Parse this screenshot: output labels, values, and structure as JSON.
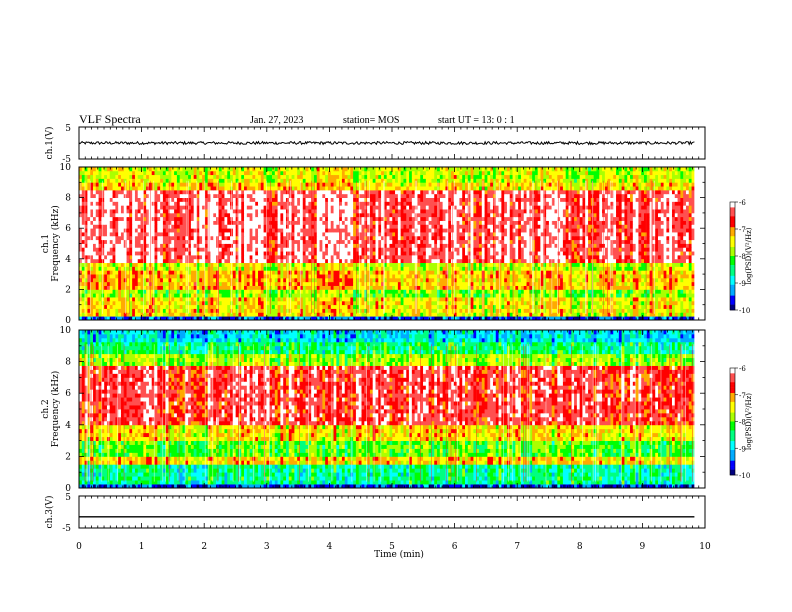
{
  "header": {
    "title": "VLF Spectra",
    "date": "Jan. 27, 2023",
    "station": "station= MOS",
    "start_ut": "start  UT =   13: 0   : 1"
  },
  "chart_data": [
    {
      "type": "line",
      "panel": "ch1-waveform",
      "ylabel": "ch.1(V)",
      "ylim": [
        -5,
        5
      ],
      "yticks": [
        "5",
        "-5"
      ],
      "x_range": [
        0,
        9.83
      ],
      "series": [
        {
          "values": [
            0.0,
            0.0
          ]
        }
      ]
    },
    {
      "type": "heatmap",
      "panel": "ch1-spectrogram",
      "ylabel": "ch.1\nFrequency (kHz)",
      "ylim": [
        0,
        10
      ],
      "yticks": [
        "0",
        "2",
        "4",
        "6",
        "8",
        "10"
      ],
      "x_range": [
        0,
        9.83
      ],
      "colorbar": {
        "label": "log(PSD)(V²/Hz)",
        "range": [
          -10,
          -6
        ],
        "ticks": [
          "-6",
          "-7",
          "-8",
          "-9",
          "-10"
        ]
      },
      "bands": [
        {
          "f": [
            0.0,
            0.3
          ],
          "level": -9.5
        },
        {
          "f": [
            0.3,
            1.5
          ],
          "level": -7.4
        },
        {
          "f": [
            1.5,
            2.0
          ],
          "level": -7.9
        },
        {
          "f": [
            2.0,
            3.2
          ],
          "level": -7.2
        },
        {
          "f": [
            3.2,
            3.7
          ],
          "level": -7.6
        },
        {
          "f": [
            3.7,
            8.6
          ],
          "level": -6.3
        },
        {
          "f": [
            8.6,
            9.1
          ],
          "level": -7.3
        },
        {
          "f": [
            9.1,
            10.0
          ],
          "level": -7.6
        }
      ]
    },
    {
      "type": "heatmap",
      "panel": "ch2-spectrogram",
      "ylabel": "ch.2\nFrequency (kHz)",
      "ylim": [
        0,
        10
      ],
      "yticks": [
        "0",
        "2",
        "4",
        "6",
        "8",
        "10"
      ],
      "x_range": [
        0,
        9.83
      ],
      "colorbar": {
        "label": "log(PSD)(V²/Hz)",
        "range": [
          -10,
          -6
        ],
        "ticks": [
          "-6",
          "-7",
          "-8",
          "-9",
          "-10"
        ]
      },
      "bands": [
        {
          "f": [
            0.0,
            0.3
          ],
          "level": -9.6
        },
        {
          "f": [
            0.3,
            1.6
          ],
          "level": -8.6
        },
        {
          "f": [
            1.6,
            2.0
          ],
          "level": -7.3
        },
        {
          "f": [
            2.0,
            3.0
          ],
          "level": -8.1
        },
        {
          "f": [
            3.0,
            4.0
          ],
          "level": -7.4
        },
        {
          "f": [
            4.0,
            7.8
          ],
          "level": -6.5
        },
        {
          "f": [
            7.8,
            8.5
          ],
          "level": -7.8
        },
        {
          "f": [
            8.5,
            9.2
          ],
          "level": -8.5
        },
        {
          "f": [
            9.2,
            10.0
          ],
          "level": -9.0
        }
      ]
    },
    {
      "type": "line",
      "panel": "ch3-waveform",
      "ylabel": "ch.3(V)",
      "ylim": [
        -5,
        5
      ],
      "yticks": [
        "5",
        "-5"
      ],
      "x_range": [
        0,
        9.83
      ],
      "series": [
        {
          "values": [
            -1.5,
            -1.5
          ]
        }
      ]
    }
  ],
  "x_axis": {
    "label": "Time (min)",
    "range": [
      0,
      10
    ],
    "ticks": [
      "0",
      "1",
      "2",
      "3",
      "4",
      "5",
      "6",
      "7",
      "8",
      "9",
      "10"
    ]
  },
  "colors": {
    "axis": "#000000",
    "colormap": [
      "#000080",
      "#0000ff",
      "#00aaff",
      "#00ffff",
      "#00ff80",
      "#00ff00",
      "#aaff00",
      "#ffff00",
      "#ffaa00",
      "#ff0000",
      "#ff5050",
      "#ffffff"
    ]
  }
}
